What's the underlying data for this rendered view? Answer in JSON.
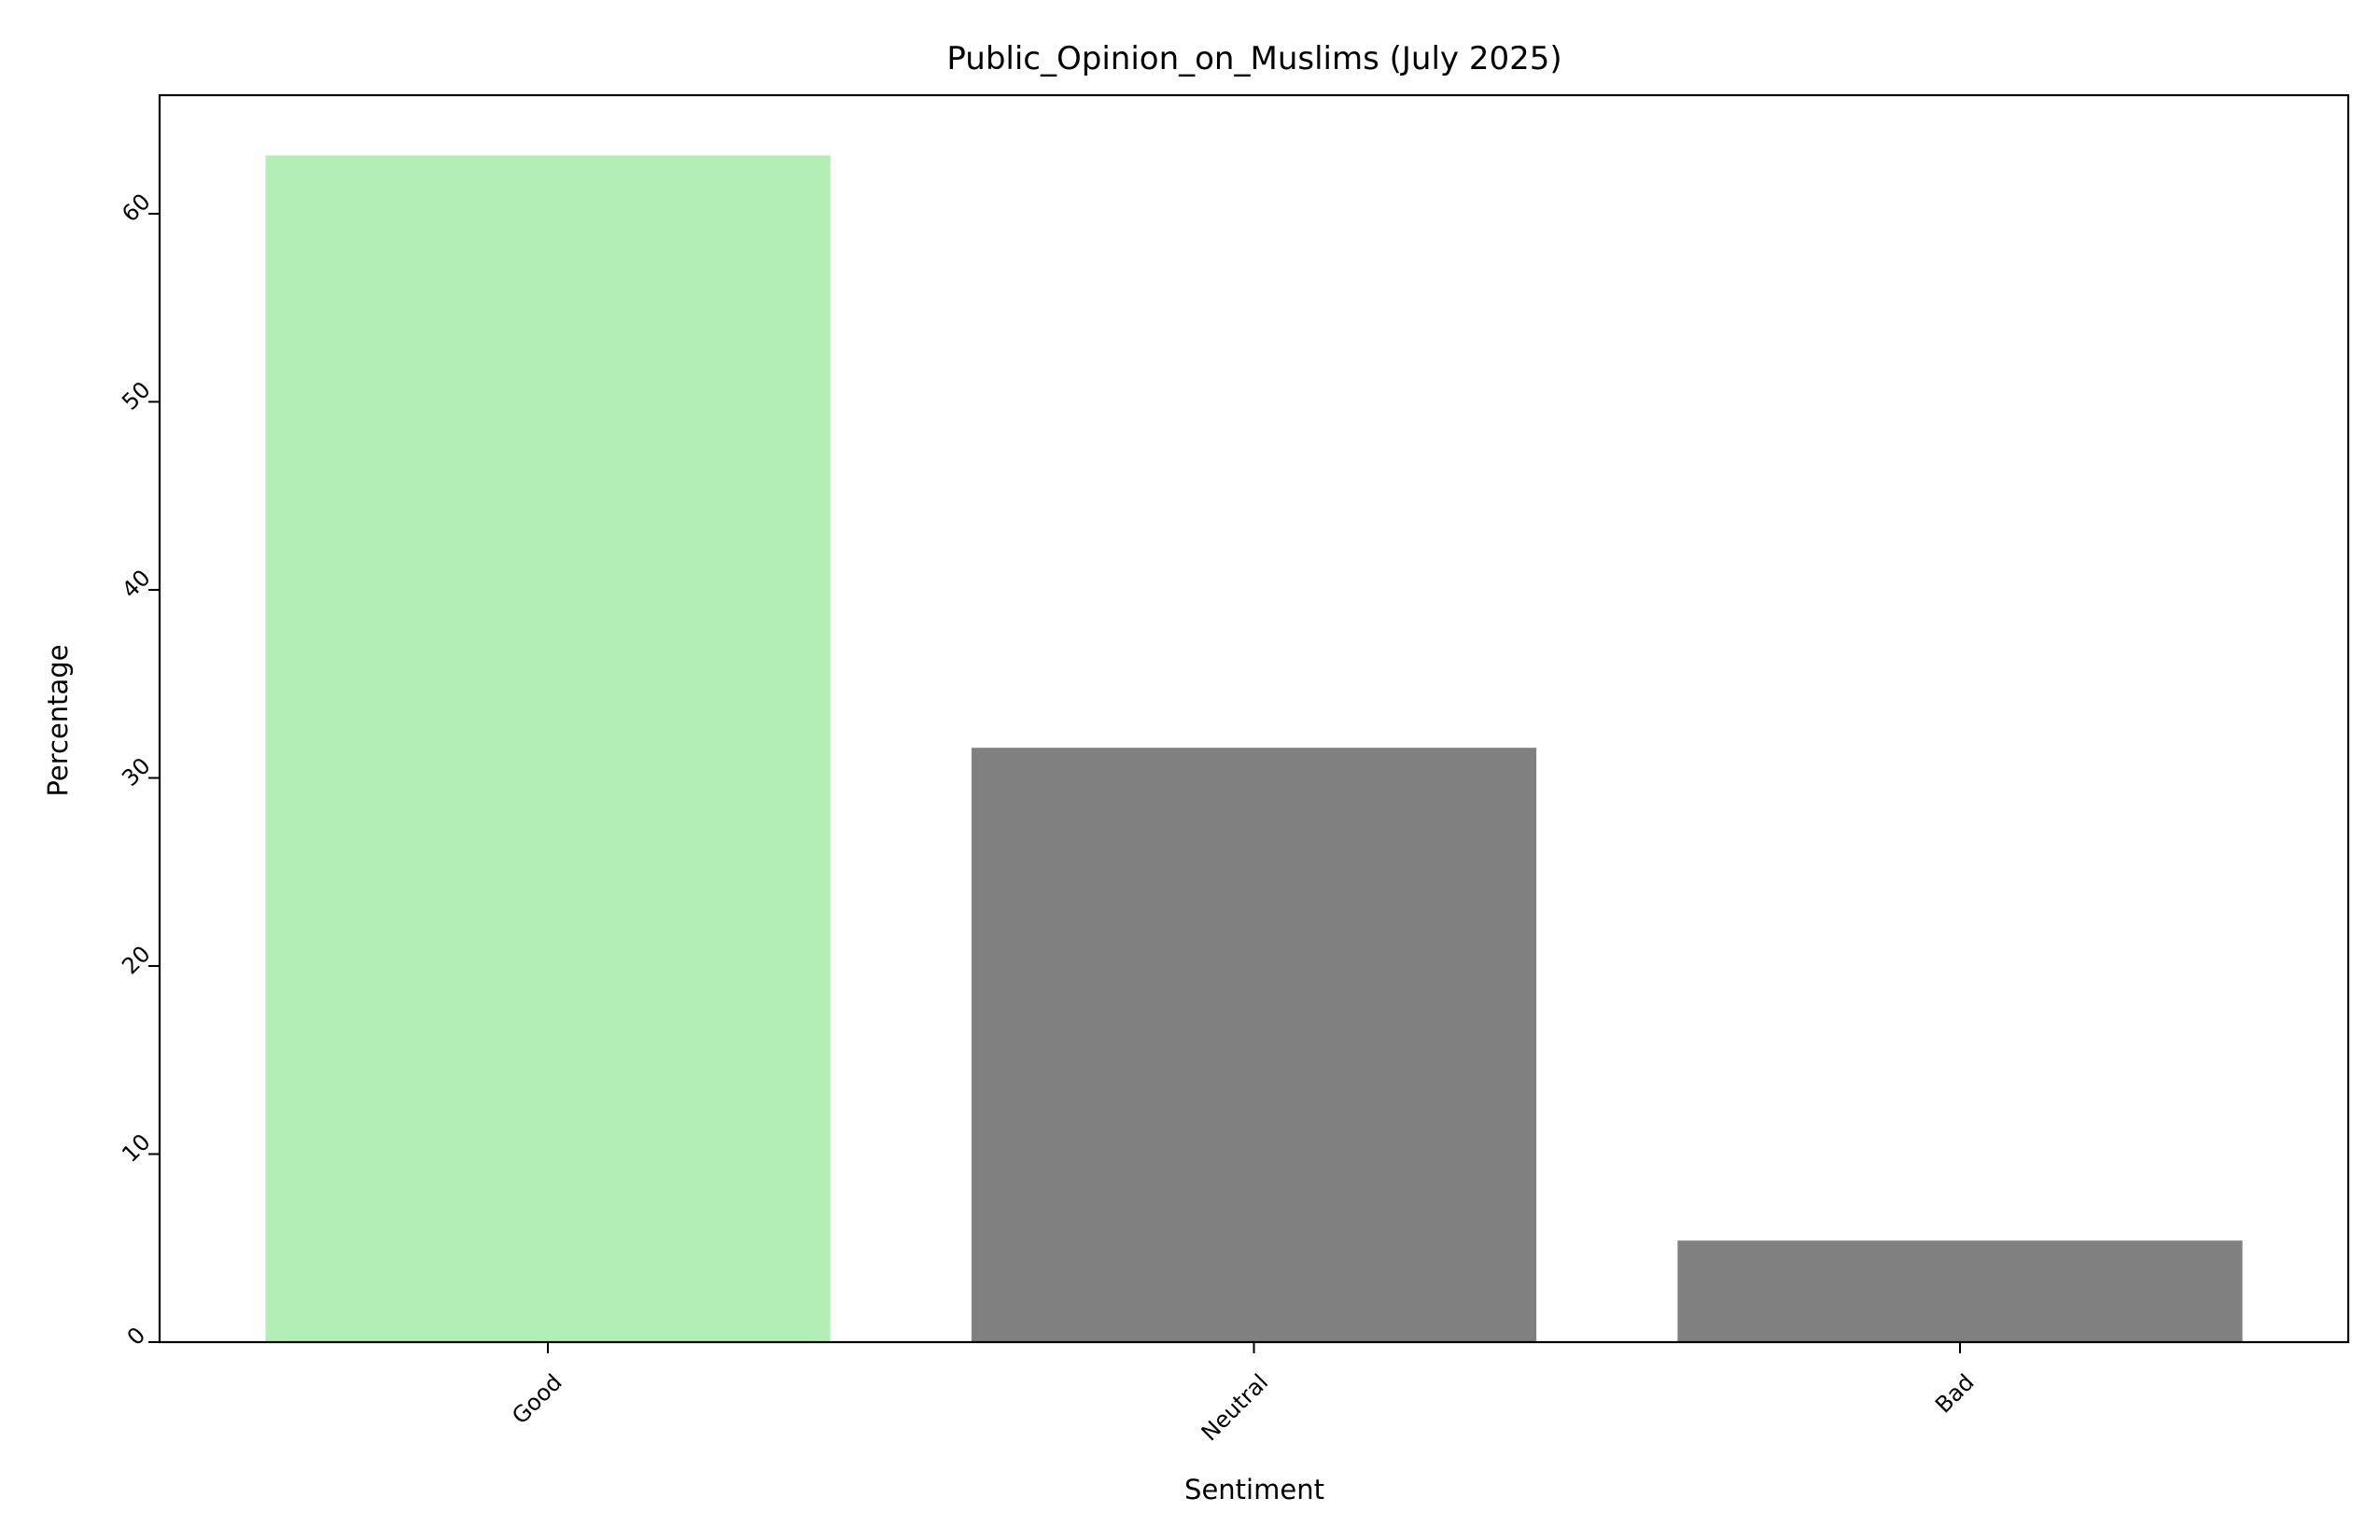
{
  "chart_data": {
    "type": "bar",
    "title": "Public_Opinion_on_Muslims (July 2025)",
    "xlabel": "Sentiment",
    "ylabel": "Percentage",
    "categories": [
      "Good",
      "Neutral",
      "Bad"
    ],
    "values": [
      63.1,
      31.6,
      5.4
    ],
    "colors": [
      "#b2eeb5",
      "#808080",
      "#808080"
    ],
    "yticks": [
      "0",
      "10",
      "20",
      "30",
      "40",
      "50",
      "60"
    ],
    "ylim": [
      0,
      66.3
    ],
    "grid": false,
    "legend": "none"
  }
}
